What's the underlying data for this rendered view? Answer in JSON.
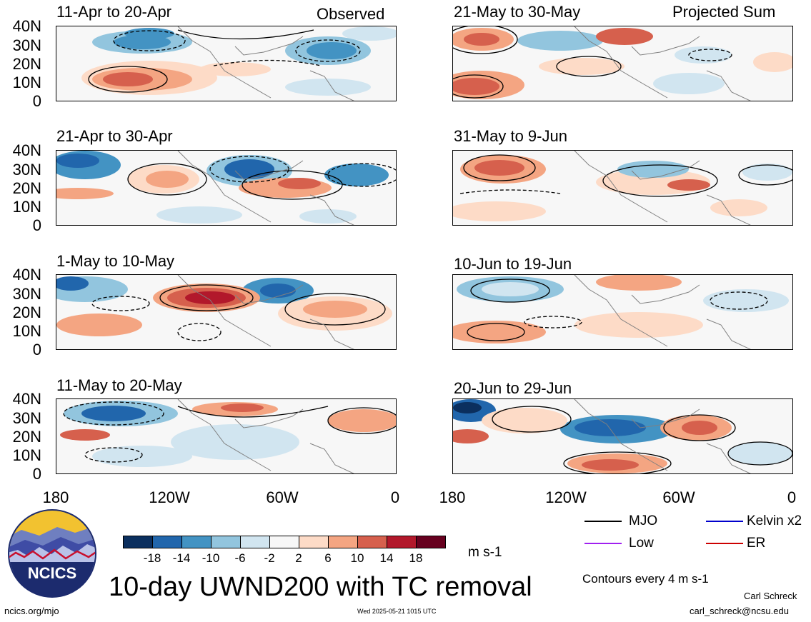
{
  "header": {
    "left_corner": "Observed",
    "right_corner": "Projected Sum"
  },
  "panels": [
    {
      "title": "11-Apr to 20-Apr",
      "side": "observed"
    },
    {
      "title": "21-Apr to 30-Apr",
      "side": "observed"
    },
    {
      "title": "1-May to 10-May",
      "side": "observed"
    },
    {
      "title": "11-May to 20-May",
      "side": "observed"
    },
    {
      "title": "21-May to 30-May",
      "side": "projected"
    },
    {
      "title": "31-May to 9-Jun",
      "side": "projected"
    },
    {
      "title": "10-Jun to 19-Jun",
      "side": "projected"
    },
    {
      "title": "20-Jun to 29-Jun",
      "side": "projected"
    }
  ],
  "y_axis_labels": [
    "40N",
    "30N",
    "20N",
    "10N",
    "0"
  ],
  "x_axis_labels": [
    "180",
    "120W",
    "60W",
    "0"
  ],
  "colorbar": {
    "colors": [
      "#0b2f5e",
      "#2166ac",
      "#4393c3",
      "#92c5de",
      "#d1e5f0",
      "#f7f7f7",
      "#fddbc7",
      "#f4a582",
      "#d6604d",
      "#b2182b",
      "#67001f"
    ],
    "labels": [
      "-18",
      "-14",
      "-10",
      "-6",
      "-2",
      "2",
      "6",
      "10",
      "14",
      "18"
    ],
    "units": "m s-1"
  },
  "legend": {
    "items": [
      {
        "label": "MJO",
        "color": "#000000",
        "icon": "solid-line"
      },
      {
        "label": "Kelvin x2",
        "color": "#0000cc",
        "icon": "solid-line"
      },
      {
        "label": "Low",
        "color": "#a020f0",
        "icon": "solid-line"
      },
      {
        "label": "ER",
        "color": "#cc0000",
        "icon": "solid-line"
      }
    ],
    "note": "Contours every 4 m s-1"
  },
  "main_title": "10-day UWND200 with TC removal",
  "logo": {
    "text": "NCICS",
    "colors": {
      "sky": "#f2c230",
      "mountains": "#3f4ca5",
      "ring": "#1c2b6e"
    }
  },
  "footer": {
    "url": "ncics.org/mjo",
    "timestamp": "Wed 2025-05-21 1015 UTC",
    "author": "Carl Schreck",
    "email": "carl_schreck@ncsu.edu"
  }
}
